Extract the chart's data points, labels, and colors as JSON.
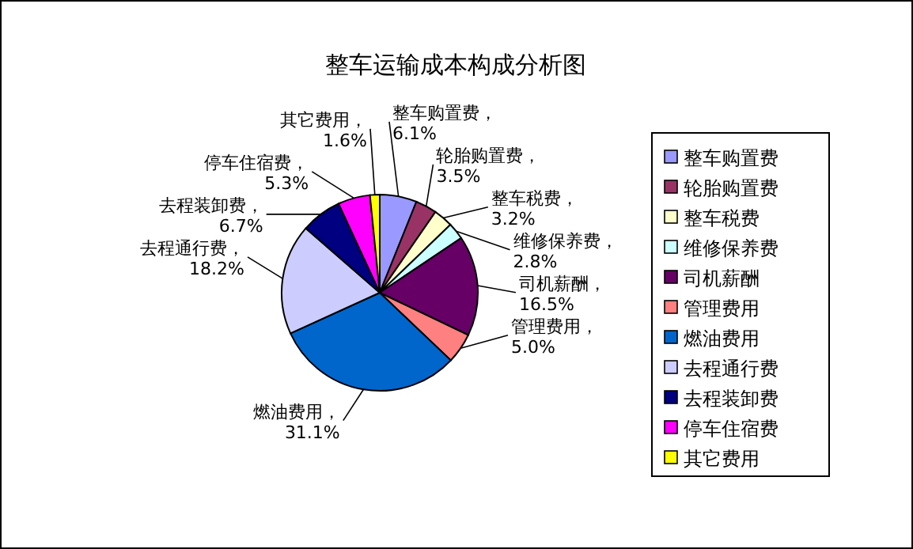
{
  "chart_data": {
    "type": "pie",
    "title": "整车运输成本构成分析图",
    "categories": [
      "整车购置费",
      "轮胎购置费",
      "整车税费",
      "维修保养费",
      "司机薪酬",
      "管理费用",
      "燃油费用",
      "去程通行费",
      "去程装卸费",
      "停车住宿费",
      "其它费用"
    ],
    "values": [
      6.1,
      3.5,
      3.2,
      2.8,
      16.5,
      5.0,
      31.1,
      18.2,
      6.7,
      5.3,
      1.6
    ],
    "colors": [
      "#9999ff",
      "#993366",
      "#ffffcc",
      "#ccffff",
      "#660066",
      "#ff8080",
      "#0066cc",
      "#ccccff",
      "#000080",
      "#ff00ff",
      "#ffff00"
    ],
    "value_labels": [
      "整车购置费，6.1%",
      "轮胎购置费，3.5%",
      "整车税费，3.2%",
      "维修保养费，2.8%",
      "司机薪酬，16.5%",
      "管理费用，5.0%",
      "燃油费用，31.1%",
      "去程通行费，18.2%",
      "去程装卸费，6.7%",
      "停车住宿费，5.3%",
      "其它费用，1.6%"
    ],
    "legend": "right"
  }
}
